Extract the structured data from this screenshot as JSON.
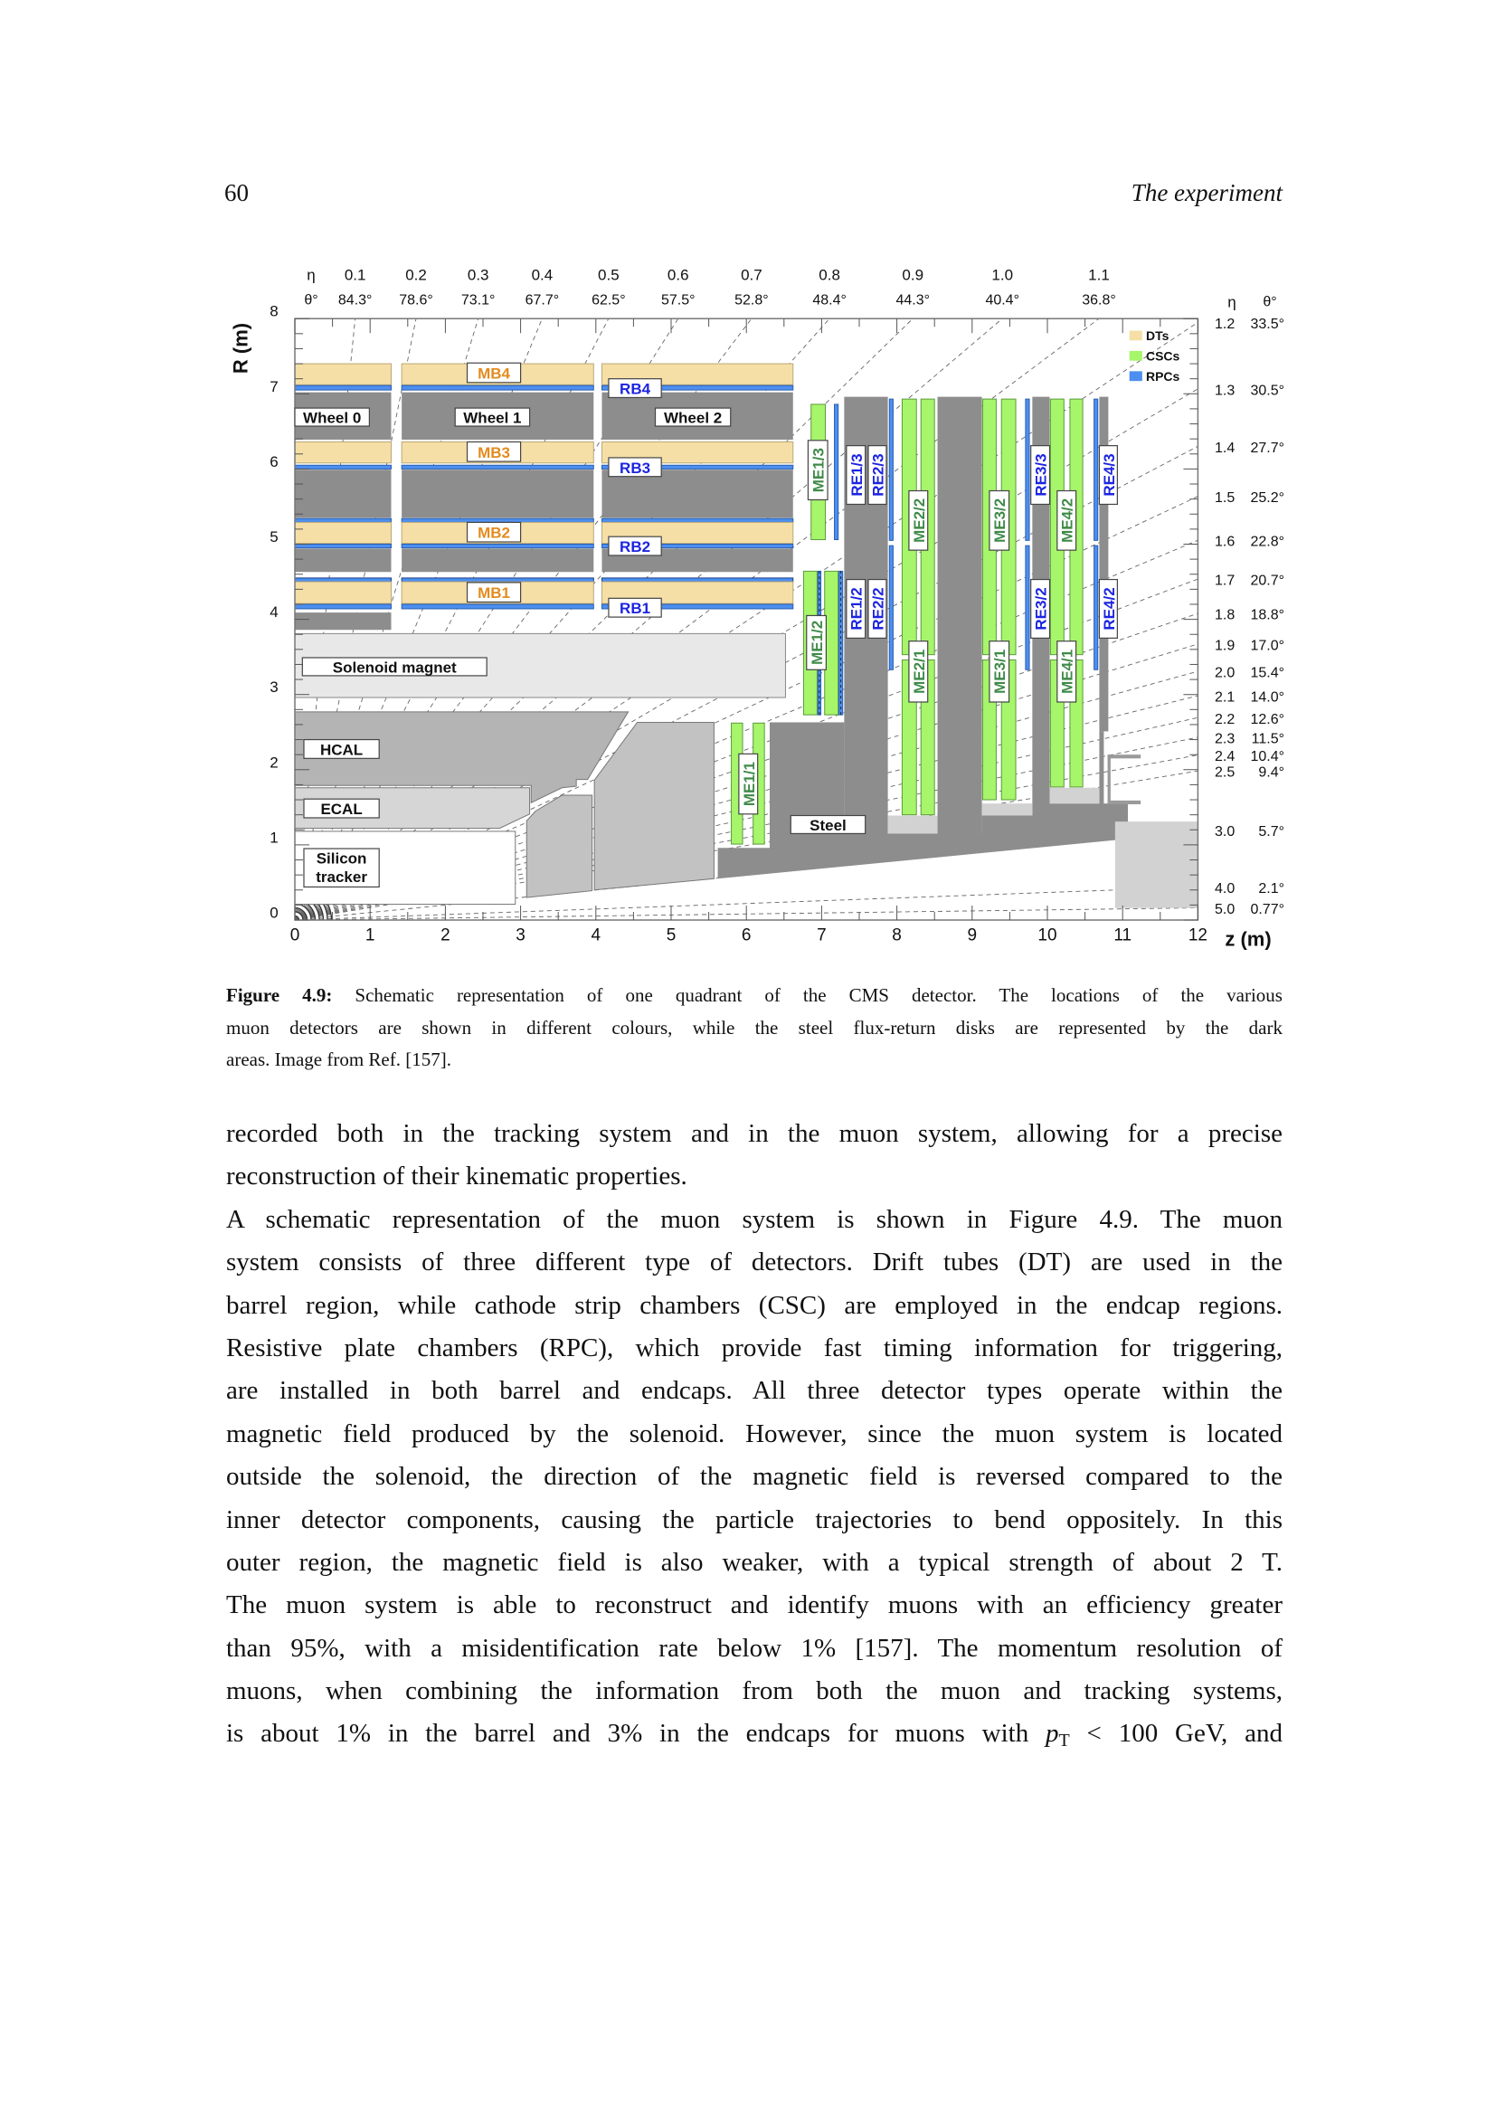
{
  "header": {
    "page_number": "60",
    "running_title": "The experiment"
  },
  "figure": {
    "colors": {
      "dt": "#f5dfa6",
      "csc": "#a6f56b",
      "rpc": "#4d8ff0",
      "steel": "#8d8d8d",
      "iron": "#8d8d8d",
      "solenoid": "#e8e8e8",
      "hcal": "#b4b4b4",
      "ecal": "#d6d6d6",
      "he": "#c2c2c2",
      "light": "#d2d2d2",
      "me_text": "#3f8a48",
      "re_text": "#1c24e0",
      "mb_text": "#e38b1f"
    },
    "eta_symbol": "η",
    "theta_symbol": "θ°",
    "top_eta": [
      "0.1",
      "0.2",
      "0.3",
      "0.4",
      "0.5",
      "0.6",
      "0.7",
      "0.8",
      "0.9",
      "1.0",
      "1.1"
    ],
    "top_theta": [
      "84.3°",
      "78.6°",
      "73.1°",
      "67.7°",
      "62.5°",
      "57.5°",
      "52.8°",
      "48.4°",
      "44.3°",
      "40.4°",
      "36.8°"
    ],
    "right_eta": [
      "1.2",
      "1.3",
      "1.4",
      "1.5",
      "1.6",
      "1.7",
      "1.8",
      "1.9",
      "2.0",
      "2.1",
      "2.2",
      "2.3",
      "2.4",
      "2.5",
      "3.0",
      "4.0",
      "5.0"
    ],
    "right_theta": [
      "33.5°",
      "30.5°",
      "27.7°",
      "25.2°",
      "22.8°",
      "20.7°",
      "18.8°",
      "17.0°",
      "15.4°",
      "14.0°",
      "12.6°",
      "11.5°",
      "10.4°",
      "9.4°",
      "5.7°",
      "2.1°",
      "0.77°"
    ],
    "x_axis": {
      "label": "z (m)",
      "ticks": [
        "0",
        "1",
        "2",
        "3",
        "4",
        "5",
        "6",
        "7",
        "8",
        "9",
        "10",
        "11",
        "12"
      ]
    },
    "y_axis": {
      "label": "R (m)",
      "ticks": [
        "0",
        "1",
        "2",
        "3",
        "4",
        "5",
        "6",
        "7",
        "8"
      ]
    },
    "legend": [
      {
        "label": "DTs",
        "color": "#f5dfa6"
      },
      {
        "label": "CSCs",
        "color": "#a6f56b"
      },
      {
        "label": "RPCs",
        "color": "#4d8ff0"
      }
    ],
    "labels": {
      "wheel0": "Wheel 0",
      "wheel1": "Wheel 1",
      "wheel2": "Wheel 2",
      "mb1": "MB1",
      "mb2": "MB2",
      "mb3": "MB3",
      "mb4": "MB4",
      "rb1": "RB1",
      "rb2": "RB2",
      "rb3": "RB3",
      "rb4": "RB4",
      "solenoid": "Solenoid magnet",
      "hcal": "HCAL",
      "ecal": "ECAL",
      "tracker1": "Silicon",
      "tracker2": "tracker",
      "steel": "Steel",
      "me11": "ME1/1",
      "me12": "ME1/2",
      "me13": "ME1/3",
      "me21": "ME2/1",
      "me22": "ME2/2",
      "me31": "ME3/1",
      "me32": "ME3/2",
      "me41": "ME4/1",
      "me42": "ME4/2",
      "re12": "RE1/2",
      "re13": "RE1/3",
      "re22": "RE2/2",
      "re23": "RE2/3",
      "re32": "RE3/2",
      "re33": "RE3/3",
      "re42": "RE4/2",
      "re43": "RE4/3"
    }
  },
  "caption": {
    "label": "Figure 4.9:",
    "lines": [
      " Schematic representation of one quadrant of the CMS detector. The locations of the various",
      "muon detectors are shown in different colours, while the steel flux-return disks are represented by the dark",
      "areas. Image from Ref. [157]."
    ]
  },
  "body": {
    "lines": [
      "recorded both in the tracking system and in the muon system, allowing for a precise",
      "reconstruction of their kinematic properties.",
      "A schematic representation of the muon system is shown in Figure 4.9.  The muon",
      "system consists of three different type of detectors.  Drift tubes (DT) are used in the",
      "barrel region, while cathode strip chambers (CSC) are employed in the endcap regions.",
      "Resistive plate chambers (RPC), which provide fast timing information for triggering,",
      "are installed in both barrel and endcaps.  All three detector types operate within the",
      "magnetic field produced by the solenoid.  However, since the muon system is located",
      "outside the solenoid, the direction of the magnetic field is reversed compared to the",
      "inner detector components, causing the particle trajectories to bend oppositely.  In this",
      "outer region, the magnetic field is also weaker, with a typical strength of about 2 T.",
      "The muon system is able to reconstruct and identify muons with an efficiency greater",
      "than 95%, with a misidentification rate below 1% [157].  The momentum resolution of",
      "muons, when combining the information from both the muon and tracking systems,"
    ],
    "last_line": {
      "before": "is about 1% in the barrel and 3% in the endcaps for muons with ",
      "math_var": "p",
      "math_sub": "T",
      "after": " < 100 GeV, and"
    }
  }
}
